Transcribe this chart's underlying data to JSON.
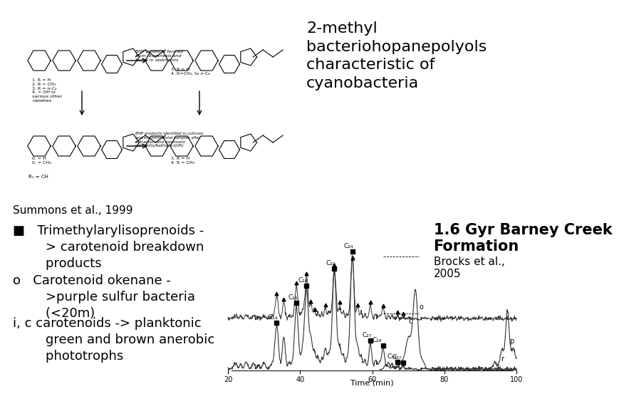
{
  "background_color": "#ffffff",
  "title_text": "2-methyl\nbacteriohopanepolyols\ncharacteristic of\ncyanobacteria",
  "title_fontsize": 16,
  "citation_text": "Summons et al., 1999",
  "citation_fontsize": 11,
  "bullet1_text": "■   Trimethylarylisoprenoids -\n        > carotenoid breakdown\n        products",
  "bullet2_text": "o   Carotenoid okenane -\n        >purple sulfur bacteria\n        (<20m)",
  "bullet3_text": "i, c carotenoids -> planktonic\n        green and brown anerobic\n        phototrophs",
  "bullets_fontsize": 13,
  "barney_bold": "1.6 Gyr Barney Creek\nFormation",
  "barney_small": "Brocks et al.,\n2005",
  "barney_fontsize": 15,
  "barney_small_fontsize": 11,
  "chrom_xlabel": "Time (min)",
  "chrom_xticks": [
    20,
    40,
    60,
    80,
    100
  ],
  "chrom_color": "#555555"
}
